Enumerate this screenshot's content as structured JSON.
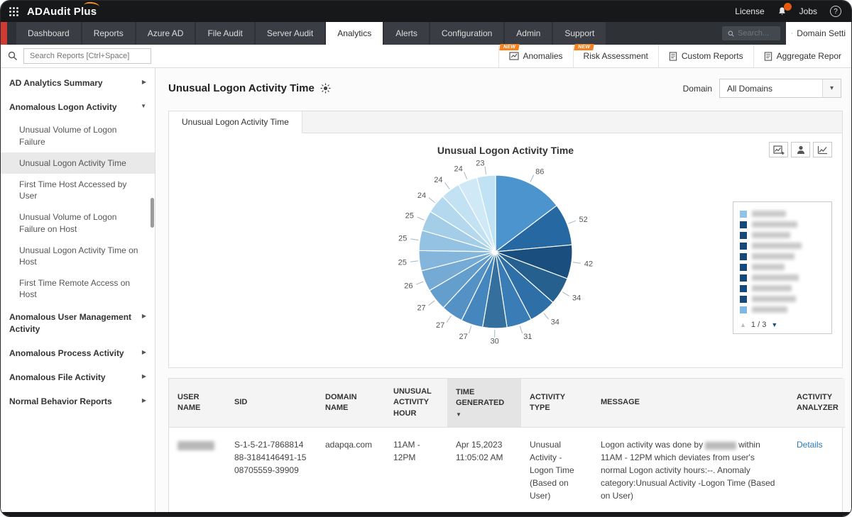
{
  "topbar": {
    "brand": "ADAudit Plus",
    "license_label": "License",
    "jobs_label": "Jobs",
    "help_label": "?"
  },
  "nav": {
    "tabs": [
      {
        "label": "Dashboard",
        "active": false
      },
      {
        "label": "Reports",
        "active": false
      },
      {
        "label": "Azure AD",
        "active": false
      },
      {
        "label": "File Audit",
        "active": false
      },
      {
        "label": "Server Audit",
        "active": false
      },
      {
        "label": "Analytics",
        "active": true
      },
      {
        "label": "Alerts",
        "active": false
      },
      {
        "label": "Configuration",
        "active": false
      },
      {
        "label": "Admin",
        "active": false
      },
      {
        "label": "Support",
        "active": false
      }
    ],
    "search_placeholder": "Search...",
    "domain_settings_label": "Domain Setti"
  },
  "toolbar": {
    "search_placeholder": "Search Reports [Ctrl+Space]",
    "report_tabs": [
      {
        "label": "Anomalies",
        "badge": "NEW"
      },
      {
        "label": "Risk Assessment",
        "badge": "NEW"
      },
      {
        "label": "Custom Reports",
        "badge": ""
      },
      {
        "label": "Aggregate Repor",
        "badge": ""
      }
    ]
  },
  "sidebar": {
    "sections": [
      {
        "label": "AD Analytics Summary",
        "state": "collapsed",
        "children": []
      },
      {
        "label": "Anomalous Logon Activity",
        "state": "expanded",
        "children": [
          {
            "label": "Unusual Volume of Logon Failure",
            "selected": false
          },
          {
            "label": "Unusual Logon Activity Time",
            "selected": true
          },
          {
            "label": "First Time Host Accessed by User",
            "selected": false
          },
          {
            "label": "Unusual Volume of Logon Failure on Host",
            "selected": false
          },
          {
            "label": "Unusual Logon Activity Time on Host",
            "selected": false
          },
          {
            "label": "First Time Remote Access on Host",
            "selected": false
          }
        ]
      },
      {
        "label": "Anomalous User Management Activity",
        "state": "collapsed",
        "children": []
      },
      {
        "label": "Anomalous Process Activity",
        "state": "collapsed",
        "children": []
      },
      {
        "label": "Anomalous File Activity",
        "state": "collapsed",
        "children": []
      },
      {
        "label": "Normal Behavior Reports",
        "state": "collapsed",
        "children": []
      }
    ]
  },
  "main": {
    "page_title": "Unusual Logon Activity Time",
    "domain_label": "Domain",
    "domain_value": "All Domains",
    "card_tab": "Unusual Logon Activity Time"
  },
  "chart_data": {
    "type": "pie",
    "title": "Unusual Logon Activity Time",
    "values": [
      86,
      52,
      42,
      34,
      34,
      31,
      30,
      27,
      27,
      27,
      26,
      25,
      25,
      25,
      24,
      24,
      24,
      23
    ],
    "colors": [
      "#4b94cd",
      "#2668a2",
      "#1a4e7e",
      "#25608f",
      "#2f6fa7",
      "#3a7cb5",
      "#346f9e",
      "#4486bd",
      "#5492c5",
      "#649ecd",
      "#74aad4",
      "#84b6db",
      "#94c2e2",
      "#a4cde8",
      "#b4d9ef",
      "#c2e2f4",
      "#cfe9f7",
      "#bfe3f5"
    ],
    "start_angle_deg": 0,
    "direction": "clockwise",
    "labels_shown": "values",
    "legend": {
      "position": "right",
      "entries_redacted": true,
      "visible_entries": 10,
      "swatch_colors": [
        "#8fc3e8",
        "#16497a",
        "#16497a",
        "#16497a",
        "#16497a",
        "#16497a",
        "#16497a",
        "#16497a",
        "#16497a",
        "#7fb9e3"
      ],
      "page_label": "1 / 3"
    }
  },
  "table": {
    "columns": [
      "USER NAME",
      "SID",
      "DOMAIN NAME",
      "UNUSUAL ACTIVITY HOUR",
      "TIME GENERATED",
      "ACTIVITY TYPE",
      "MESSAGE",
      "ACTIVITY ANALYZER"
    ],
    "sorted_column": "TIME GENERATED",
    "sort_direction": "desc",
    "rows": [
      {
        "user_name_redacted": true,
        "sid": "S-1-5-21-786881488-3184146491-1508705559-39909",
        "domain_name": "adapqa.com",
        "unusual_activity_hour": "11AM - 12PM",
        "time_generated": "Apr 15,2023 11:05:02 AM",
        "activity_type": "Unusual Activity -Logon Time (Based on User)",
        "message_prefix": "Logon activity was done by",
        "message_suffix": "within 11AM - 12PM which deviates from user's normal Logon activity hours:--. Anomaly category:Unusual Activity -Logon Time (Based on User)",
        "analyzer_link": "Details"
      }
    ]
  }
}
